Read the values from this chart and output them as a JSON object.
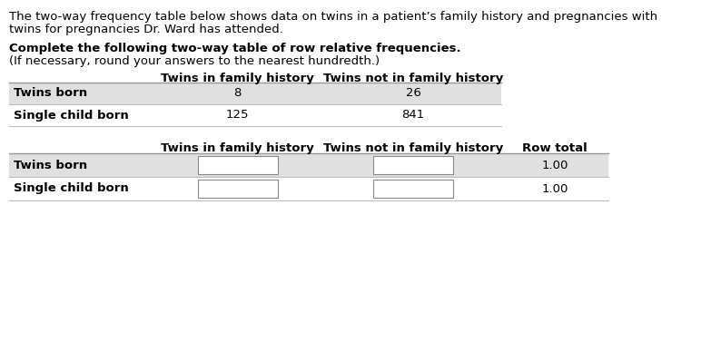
{
  "bg_color": "#ffffff",
  "text_color": "#000000",
  "paragraph1_line1": "The two-way frequency table below shows data on twins in a patient’s family history and pregnancies with",
  "paragraph1_line2": "twins for pregnancies Dr. Ward has attended.",
  "paragraph2_bold": "Complete the following two-way table of row relative frequencies.",
  "paragraph3": "(If necessary, round your answers to the nearest hundredth.)",
  "t1_col_headers": [
    "Twins in family history",
    "Twins not in family history"
  ],
  "t1_rows": [
    [
      "Twins born",
      "8",
      "26"
    ],
    [
      "Single child born",
      "125",
      "841"
    ]
  ],
  "t1_row_bg": [
    "#e0e0e0",
    "#ffffff"
  ],
  "t2_col_headers": [
    "Twins in family history",
    "Twins not in family history",
    "Row total"
  ],
  "t2_rows": [
    [
      "Twins born",
      "1.00"
    ],
    [
      "Single child born",
      "1.00"
    ]
  ],
  "t2_row_bg": [
    "#e0e0e0",
    "#ffffff"
  ],
  "font_size": 9.5,
  "header_line_color": "#999999",
  "row_sep_color": "#bbbbbb"
}
